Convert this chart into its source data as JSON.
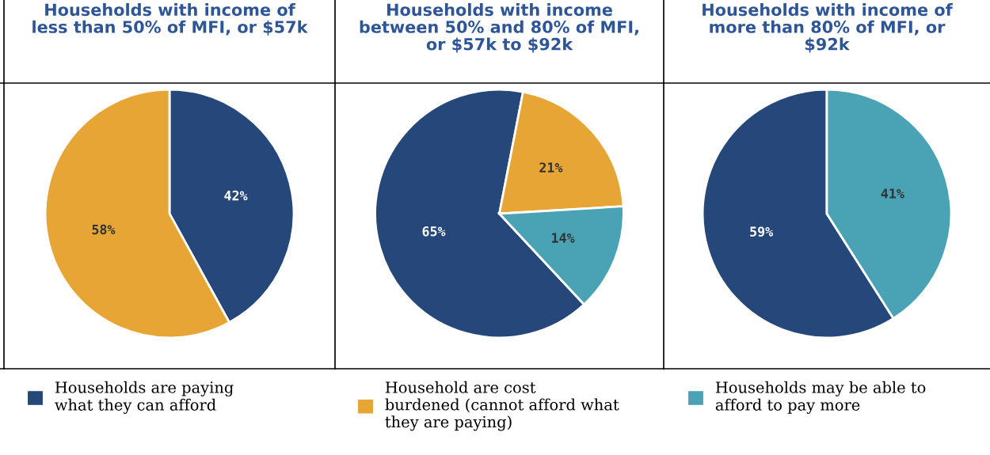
{
  "chart_data": [
    {
      "type": "pie",
      "title": "Households with income of\nless than 50% of MFI, or $57k",
      "categories": [
        null,
        null
      ],
      "values": [
        42,
        58
      ],
      "colors": [
        "#26477a",
        "#e6a534"
      ],
      "value_labels": [
        "42%",
        "58%"
      ],
      "legend": false
    },
    {
      "type": "pie",
      "title": "Households with income\nbetween 50% and 80% of MFI,\nor $57k to $92k",
      "categories": [
        "Households are paying\nwhat they can afford",
        "Household are cost\nburdened (cannot afford what\nthey are paying)",
        "Households may be able to\nafford to pay more"
      ],
      "values": [
        65,
        21,
        14
      ],
      "colors": [
        "#26477a",
        "#e6a534",
        "#4aa3b5"
      ],
      "value_labels": [
        "65%",
        "21%",
        "14%"
      ],
      "legend": "bottom"
    },
    {
      "type": "pie",
      "title": "Households with income of\nmore than 80% of MFI, or\n$92k",
      "categories": [
        null,
        null
      ],
      "values": [
        59,
        41
      ],
      "colors": [
        "#26477a",
        "#4aa3b5"
      ],
      "value_labels": [
        "59%",
        "41%"
      ],
      "legend": false
    }
  ]
}
